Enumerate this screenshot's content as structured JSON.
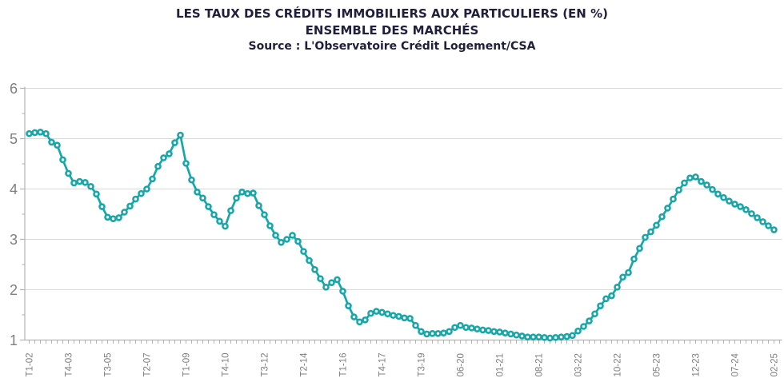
{
  "header": {
    "title_line1": "LES TAUX DES CRÉDITS IMMOBILIERS AUX PARTICULIERS (EN %)",
    "title_line2": "ENSEMBLE DES MARCHÉS",
    "title_line3": "Source : L'Observatoire Crédit Logement/CSA"
  },
  "chart_data": {
    "type": "line",
    "title": "LES TAUX DES CRÉDITS IMMOBILIERS AUX PARTICULIERS (EN %)",
    "subtitle": "ENSEMBLE DES MARCHÉS",
    "source": "Source : L'Observatoire Crédit Logement/CSA",
    "xlabel": "",
    "ylabel": "",
    "ylim": [
      1,
      6
    ],
    "yticks": [
      1,
      2,
      3,
      4,
      5,
      6
    ],
    "y_minor_step": 0.5,
    "grid": "horizontal",
    "legend": "none",
    "line_color": "#17a7a9",
    "marker": "circle-donut-white-center",
    "grid_color": "#d9d9d9",
    "axis_color": "#b3b3b3",
    "tick_label_color": "#7f7f7f",
    "x_label_every": 7,
    "x_tick_labels_shown": [
      "T1-02",
      "T4-03",
      "T3-05",
      "T2-07",
      "T1-09",
      "T4-10",
      "T3-12",
      "T2-14",
      "T1-16",
      "T4-17",
      "T3-19",
      "06-20",
      "01-21",
      "08-21",
      "03-22",
      "10-22",
      "05-23",
      "12-23",
      "07-24",
      "02-25"
    ],
    "x": [
      "T1-02",
      "T2-02",
      "T3-02",
      "T4-02",
      "T1-03",
      "T2-03",
      "T3-03",
      "T4-03",
      "T1-04",
      "T2-04",
      "T3-04",
      "T4-04",
      "T1-05",
      "T2-05",
      "T3-05",
      "T4-05",
      "T1-06",
      "T2-06",
      "T3-06",
      "T4-06",
      "T1-07",
      "T2-07",
      "T3-07",
      "T4-07",
      "T1-08",
      "T2-08",
      "T3-08",
      "T4-08",
      "T1-09",
      "T2-09",
      "T3-09",
      "T4-09",
      "T1-10",
      "T2-10",
      "T3-10",
      "T4-10",
      "T1-11",
      "T2-11",
      "T3-11",
      "T4-11",
      "T1-12",
      "T2-12",
      "T3-12",
      "T4-12",
      "T1-13",
      "T2-13",
      "T3-13",
      "T4-13",
      "T1-14",
      "T2-14",
      "T3-14",
      "T4-14",
      "T1-15",
      "T2-15",
      "T3-15",
      "T4-15",
      "T1-16",
      "T2-16",
      "T3-16",
      "T4-16",
      "T1-17",
      "T2-17",
      "T3-17",
      "T4-17",
      "T1-18",
      "T2-18",
      "T3-18",
      "T4-18",
      "T1-19",
      "T2-19",
      "T3-19",
      "12-19",
      "01-20",
      "02-20",
      "03-20",
      "04-20",
      "05-20",
      "06-20",
      "07-20",
      "08-20",
      "09-20",
      "10-20",
      "11-20",
      "12-20",
      "01-21",
      "02-21",
      "03-21",
      "04-21",
      "05-21",
      "06-21",
      "07-21",
      "08-21",
      "09-21",
      "10-21",
      "11-21",
      "12-21",
      "01-22",
      "02-22",
      "03-22",
      "04-22",
      "05-22",
      "06-22",
      "07-22",
      "08-22",
      "09-22",
      "10-22",
      "11-22",
      "12-22",
      "01-23",
      "02-23",
      "03-23",
      "04-23",
      "05-23",
      "06-23",
      "07-23",
      "08-23",
      "09-23",
      "10-23",
      "11-23",
      "12-23",
      "01-24",
      "02-24",
      "03-24",
      "04-24",
      "05-24",
      "06-24",
      "07-24",
      "08-24",
      "09-24",
      "10-24",
      "11-24",
      "12-24",
      "01-25",
      "02-25"
    ],
    "values": [
      5.1,
      5.12,
      5.13,
      5.1,
      4.93,
      4.87,
      4.58,
      4.31,
      4.12,
      4.15,
      4.13,
      4.05,
      3.9,
      3.65,
      3.44,
      3.41,
      3.43,
      3.54,
      3.66,
      3.8,
      3.91,
      4.0,
      4.2,
      4.45,
      4.62,
      4.7,
      4.92,
      5.07,
      4.51,
      4.18,
      3.94,
      3.82,
      3.65,
      3.49,
      3.36,
      3.26,
      3.57,
      3.82,
      3.94,
      3.91,
      3.92,
      3.67,
      3.49,
      3.27,
      3.08,
      2.94,
      3.0,
      3.08,
      2.96,
      2.76,
      2.58,
      2.4,
      2.22,
      2.05,
      2.14,
      2.2,
      1.97,
      1.68,
      1.46,
      1.36,
      1.4,
      1.53,
      1.57,
      1.55,
      1.52,
      1.49,
      1.47,
      1.44,
      1.43,
      1.29,
      1.17,
      1.12,
      1.13,
      1.13,
      1.14,
      1.17,
      1.25,
      1.29,
      1.25,
      1.24,
      1.22,
      1.2,
      1.19,
      1.17,
      1.16,
      1.14,
      1.12,
      1.1,
      1.08,
      1.06,
      1.06,
      1.06,
      1.05,
      1.04,
      1.05,
      1.06,
      1.07,
      1.09,
      1.18,
      1.27,
      1.38,
      1.52,
      1.68,
      1.82,
      1.88,
      2.05,
      2.25,
      2.34,
      2.61,
      2.82,
      3.04,
      3.15,
      3.28,
      3.45,
      3.62,
      3.8,
      3.98,
      4.12,
      4.22,
      4.24,
      4.15,
      4.08,
      3.99,
      3.9,
      3.83,
      3.76,
      3.7,
      3.65,
      3.59,
      3.51,
      3.43,
      3.35,
      3.27,
      3.19
    ]
  }
}
